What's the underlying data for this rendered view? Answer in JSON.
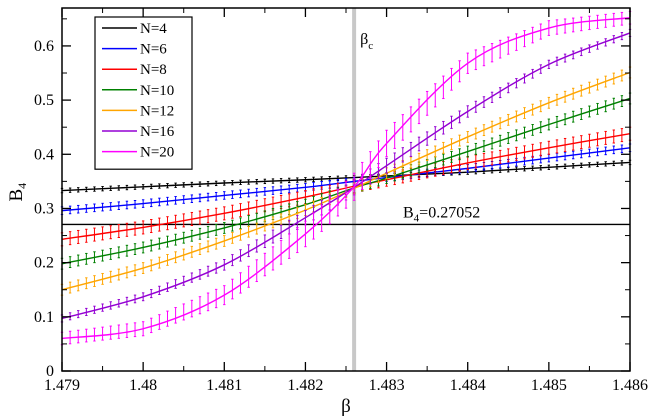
{
  "chart_data": {
    "type": "line",
    "xlabel": "β",
    "ylabel": "B",
    "ylabel_sub": "4",
    "xlim": [
      1.479,
      1.486
    ],
    "ylim": [
      0,
      0.67
    ],
    "x_ticks": [
      1.479,
      1.48,
      1.481,
      1.482,
      1.483,
      1.484,
      1.485,
      1.486
    ],
    "x_tick_labels": [
      "1.479",
      "1.48",
      "1.481",
      "1.482",
      "1.483",
      "1.484",
      "1.485",
      "1.486"
    ],
    "y_ticks": [
      0,
      0.1,
      0.2,
      0.3,
      0.4,
      0.5,
      0.6
    ],
    "y_tick_labels": [
      "0",
      "0.1",
      "0.2",
      "0.3",
      "0.4",
      "0.5",
      "0.6"
    ],
    "vline": {
      "x": 1.4826,
      "label_main": "β",
      "label_sub": "c",
      "color": "#c8c8c8"
    },
    "hline": {
      "y": 0.27052,
      "label_main": "B",
      "label_sub": "4",
      "label_rest": "=0.27052",
      "color": "#000000"
    },
    "legend_position": "top-left",
    "series": [
      {
        "name": "N=4",
        "color": "#000000",
        "x": [
          1.479,
          1.48,
          1.481,
          1.482,
          1.4826,
          1.483,
          1.484,
          1.485,
          1.486
        ],
        "y": [
          0.333,
          0.34,
          0.347,
          0.353,
          0.357,
          0.36,
          0.367,
          0.376,
          0.385
        ],
        "err": 0.004
      },
      {
        "name": "N=6",
        "color": "#0000ff",
        "x": [
          1.479,
          1.48,
          1.481,
          1.482,
          1.4826,
          1.483,
          1.484,
          1.485,
          1.486
        ],
        "y": [
          0.296,
          0.309,
          0.324,
          0.339,
          0.35,
          0.357,
          0.374,
          0.393,
          0.412
        ],
        "err": 0.007
      },
      {
        "name": "N=8",
        "color": "#ff0000",
        "x": [
          1.479,
          1.48,
          1.481,
          1.482,
          1.4826,
          1.483,
          1.484,
          1.485,
          1.486
        ],
        "y": [
          0.243,
          0.265,
          0.291,
          0.321,
          0.341,
          0.353,
          0.384,
          0.412,
          0.438
        ],
        "err": 0.012
      },
      {
        "name": "N=10",
        "color": "#008000",
        "x": [
          1.479,
          1.48,
          1.481,
          1.482,
          1.4826,
          1.483,
          1.484,
          1.485,
          1.486
        ],
        "y": [
          0.198,
          0.228,
          0.264,
          0.307,
          0.338,
          0.356,
          0.405,
          0.455,
          0.503
        ],
        "err": 0.01
      },
      {
        "name": "N=12",
        "color": "#ffa500",
        "x": [
          1.479,
          1.48,
          1.481,
          1.482,
          1.4826,
          1.483,
          1.484,
          1.485,
          1.486
        ],
        "y": [
          0.15,
          0.19,
          0.24,
          0.297,
          0.337,
          0.365,
          0.432,
          0.495,
          0.551
        ],
        "err": 0.01
      },
      {
        "name": "N=16",
        "color": "#9400d3",
        "x": [
          1.479,
          1.48,
          1.481,
          1.482,
          1.4826,
          1.483,
          1.484,
          1.485,
          1.486
        ],
        "y": [
          0.097,
          0.137,
          0.196,
          0.283,
          0.339,
          0.379,
          0.479,
          0.566,
          0.624
        ],
        "err": 0.014
      },
      {
        "name": "N=20",
        "color": "#ff00ff",
        "x": [
          1.479,
          1.48,
          1.481,
          1.482,
          1.4826,
          1.483,
          1.484,
          1.485,
          1.486
        ],
        "y": [
          0.06,
          0.078,
          0.14,
          0.253,
          0.34,
          0.42,
          0.568,
          0.633,
          0.652
        ],
        "err": 0.025
      }
    ]
  }
}
